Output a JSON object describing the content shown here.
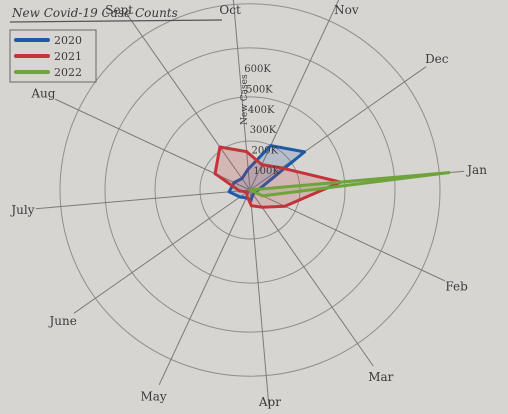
{
  "chart_data": {
    "type": "radar",
    "title": "New Covid-19 Case Counts",
    "radial_axis_label": "New Cases",
    "radial_ticks": [
      "100K",
      "200K",
      "300K",
      "400K",
      "500K",
      "600K"
    ],
    "rlim": [
      0,
      600000
    ],
    "grid": true,
    "legend_position": "top-left",
    "categories": [
      "Jan",
      "Feb",
      "Mar",
      "Apr",
      "May",
      "June",
      "July",
      "Aug",
      "Sept",
      "Oct",
      "Nov",
      "Dec"
    ],
    "series": [
      {
        "name": "2020",
        "color": "#1f5aa6",
        "values": [
          null,
          null,
          15000,
          30000,
          25000,
          35000,
          60000,
          50000,
          40000,
          60000,
          140000,
          190000
        ]
      },
      {
        "name": "2021",
        "color": "#c4333a",
        "values": [
          260000,
          110000,
          60000,
          45000,
          20000,
          10000,
          30000,
          110000,
          150000,
          110000,
          80000,
          110000
        ]
      },
      {
        "name": "2022",
        "color": "#6fa43c",
        "values": [
          570000,
          40000,
          null,
          null,
          null,
          null,
          null,
          null,
          null,
          null,
          null,
          null
        ]
      }
    ]
  }
}
